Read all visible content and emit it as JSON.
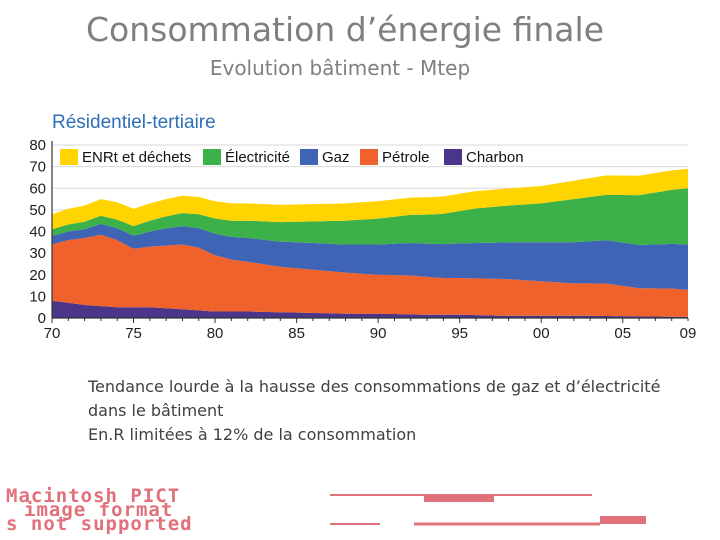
{
  "slide": {
    "title": "Consommation d’énergie finale",
    "subtitle": "Evolution bâtiment - Mtep",
    "caption_lines": [
      "Tendance lourde à la hausse des consommations de gaz et d’électricité",
      "dans le bâtiment",
      "En.R limitées à 12% de la consommation"
    ],
    "placeholder_lines": [
      "Macintosh PICT",
      "image format",
      "s not supported"
    ]
  },
  "colors": {
    "enrt": "#ffd400",
    "electricite": "#3cb14a",
    "gaz": "#3f63b5",
    "petrole": "#f0622c",
    "charbon": "#4a3589",
    "chart_title": "#2e6fb5",
    "placeholder": "#e0707a"
  },
  "chart_data": {
    "type": "area",
    "stacked": true,
    "title": "Résidentiel-tertiaire",
    "xlabel": "",
    "ylabel": "",
    "x_years": [
      1970,
      2009
    ],
    "xtick_values": [
      1970,
      1975,
      1980,
      1985,
      1990,
      1995,
      2000,
      2005,
      2009
    ],
    "xtick_labels": [
      "70",
      "75",
      "80",
      "85",
      "90",
      "95",
      "00",
      "05",
      "09"
    ],
    "ylim": [
      0,
      80
    ],
    "yticks": [
      0,
      10,
      20,
      30,
      40,
      50,
      60,
      70,
      80
    ],
    "legend_position": "top",
    "series": [
      {
        "name": "Charbon",
        "color_key": "charbon",
        "points": [
          [
            1970,
            8
          ],
          [
            1972,
            6
          ],
          [
            1974,
            5
          ],
          [
            1976,
            5
          ],
          [
            1978,
            4
          ],
          [
            1980,
            3
          ],
          [
            1982,
            3
          ],
          [
            1985,
            2.5
          ],
          [
            1988,
            2
          ],
          [
            1990,
            2
          ],
          [
            1993,
            1.5
          ],
          [
            1995,
            1.5
          ],
          [
            1998,
            1
          ],
          [
            2000,
            1
          ],
          [
            2003,
            1
          ],
          [
            2006,
            0.8
          ],
          [
            2009,
            0.5
          ]
        ]
      },
      {
        "name": "Pétrole",
        "color_key": "petrole",
        "points": [
          [
            1970,
            26
          ],
          [
            1971,
            29
          ],
          [
            1972,
            31
          ],
          [
            1973,
            33
          ],
          [
            1974,
            31
          ],
          [
            1975,
            27
          ],
          [
            1976,
            28
          ],
          [
            1977,
            29
          ],
          [
            1978,
            30
          ],
          [
            1979,
            29
          ],
          [
            1980,
            26
          ],
          [
            1981,
            24
          ],
          [
            1982,
            23
          ],
          [
            1984,
            21
          ],
          [
            1986,
            20
          ],
          [
            1988,
            19
          ],
          [
            1990,
            18
          ],
          [
            1992,
            18
          ],
          [
            1994,
            17
          ],
          [
            1996,
            17
          ],
          [
            1998,
            17
          ],
          [
            2000,
            16
          ],
          [
            2002,
            15
          ],
          [
            2004,
            15
          ],
          [
            2006,
            13
          ],
          [
            2008,
            13
          ],
          [
            2009,
            12.5
          ]
        ]
      },
      {
        "name": "Gaz",
        "color_key": "gaz",
        "points": [
          [
            1970,
            4
          ],
          [
            1972,
            4
          ],
          [
            1973,
            5
          ],
          [
            1975,
            6
          ],
          [
            1977,
            8
          ],
          [
            1979,
            9
          ],
          [
            1980,
            10
          ],
          [
            1982,
            11
          ],
          [
            1985,
            12
          ],
          [
            1988,
            13
          ],
          [
            1990,
            14
          ],
          [
            1992,
            15
          ],
          [
            1995,
            16
          ],
          [
            1998,
            17
          ],
          [
            2000,
            18
          ],
          [
            2002,
            19
          ],
          [
            2004,
            20
          ],
          [
            2006,
            20
          ],
          [
            2009,
            21
          ]
        ]
      },
      {
        "name": "Électricité",
        "color_key": "electricite",
        "points": [
          [
            1970,
            3
          ],
          [
            1972,
            3.5
          ],
          [
            1974,
            4
          ],
          [
            1976,
            5
          ],
          [
            1978,
            6
          ],
          [
            1980,
            7
          ],
          [
            1982,
            8
          ],
          [
            1984,
            9
          ],
          [
            1986,
            10
          ],
          [
            1988,
            11
          ],
          [
            1990,
            12
          ],
          [
            1992,
            13
          ],
          [
            1994,
            14
          ],
          [
            1996,
            16
          ],
          [
            1998,
            17
          ],
          [
            2000,
            18
          ],
          [
            2002,
            20
          ],
          [
            2004,
            21
          ],
          [
            2006,
            23
          ],
          [
            2008,
            25
          ],
          [
            2009,
            26
          ]
        ]
      },
      {
        "name": "ENRt et déchets",
        "color_key": "enrt",
        "points": [
          [
            1970,
            7
          ],
          [
            1972,
            7.5
          ],
          [
            1974,
            8
          ],
          [
            1976,
            8
          ],
          [
            1978,
            8
          ],
          [
            1980,
            8
          ],
          [
            1982,
            8
          ],
          [
            1984,
            8
          ],
          [
            1986,
            8
          ],
          [
            1988,
            8
          ],
          [
            1990,
            8
          ],
          [
            1992,
            8
          ],
          [
            1994,
            8
          ],
          [
            1996,
            8
          ],
          [
            1998,
            8
          ],
          [
            2000,
            8
          ],
          [
            2002,
            8.5
          ],
          [
            2004,
            9
          ],
          [
            2006,
            9
          ],
          [
            2008,
            9
          ],
          [
            2009,
            9
          ]
        ]
      }
    ]
  }
}
